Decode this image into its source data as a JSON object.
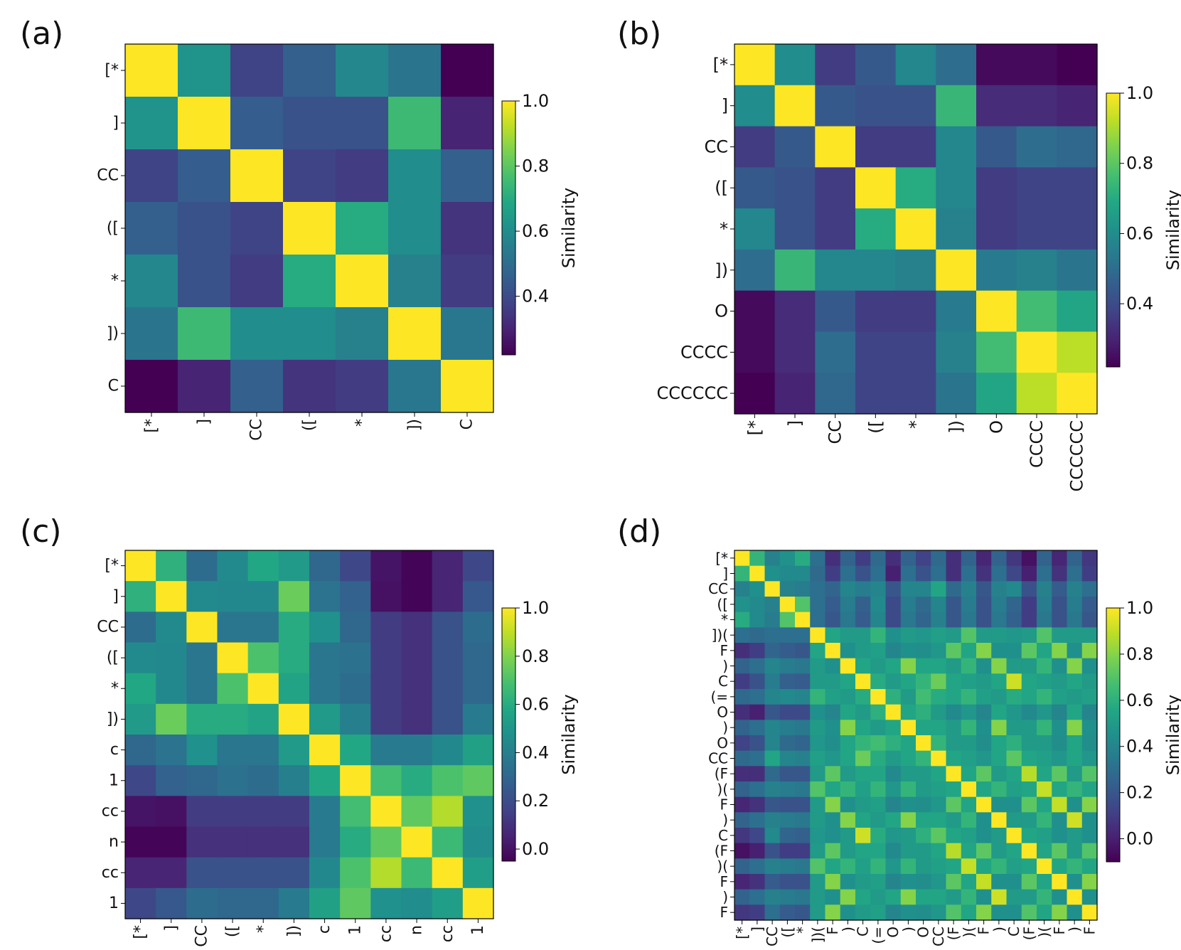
{
  "chart_data": [
    {
      "panel": "(a)",
      "type": "heatmap",
      "labels": [
        "[*",
        "]",
        "CC",
        "([",
        "*",
        "])",
        "C"
      ],
      "values": [
        [
          1.0,
          0.62,
          0.38,
          0.46,
          0.58,
          0.52,
          0.22
        ],
        [
          0.62,
          1.0,
          0.45,
          0.42,
          0.42,
          0.75,
          0.3
        ],
        [
          0.38,
          0.45,
          1.0,
          0.38,
          0.36,
          0.6,
          0.46
        ],
        [
          0.46,
          0.42,
          0.38,
          1.0,
          0.7,
          0.6,
          0.34
        ],
        [
          0.58,
          0.42,
          0.36,
          0.7,
          1.0,
          0.56,
          0.36
        ],
        [
          0.52,
          0.75,
          0.6,
          0.6,
          0.56,
          1.0,
          0.53
        ],
        [
          0.22,
          0.3,
          0.46,
          0.34,
          0.36,
          0.53,
          1.0
        ]
      ],
      "colorbar": {
        "label": "Similarity",
        "range": [
          0.22,
          1.0
        ],
        "ticks": [
          "0.4",
          "0.6",
          "0.8",
          "1.0"
        ],
        "tick_values": [
          0.4,
          0.6,
          0.8,
          1.0
        ]
      }
    },
    {
      "panel": "(b)",
      "type": "heatmap",
      "labels": [
        "[*",
        "]",
        "CC",
        "([",
        "*",
        "])",
        "O",
        "CCCC",
        "CCCCCC"
      ],
      "values": [
        [
          1.0,
          0.6,
          0.36,
          0.44,
          0.58,
          0.5,
          0.24,
          0.24,
          0.22
        ],
        [
          0.6,
          1.0,
          0.44,
          0.42,
          0.42,
          0.74,
          0.32,
          0.32,
          0.3
        ],
        [
          0.36,
          0.44,
          1.0,
          0.36,
          0.36,
          0.58,
          0.44,
          0.5,
          0.48
        ],
        [
          0.44,
          0.42,
          0.36,
          1.0,
          0.7,
          0.58,
          0.36,
          0.38,
          0.38
        ],
        [
          0.58,
          0.42,
          0.36,
          0.7,
          1.0,
          0.56,
          0.36,
          0.38,
          0.38
        ],
        [
          0.5,
          0.74,
          0.58,
          0.58,
          0.56,
          1.0,
          0.54,
          0.56,
          0.52
        ],
        [
          0.24,
          0.32,
          0.44,
          0.36,
          0.36,
          0.54,
          1.0,
          0.76,
          0.68
        ],
        [
          0.24,
          0.32,
          0.5,
          0.38,
          0.38,
          0.56,
          0.76,
          1.0,
          0.92
        ],
        [
          0.22,
          0.3,
          0.48,
          0.38,
          0.38,
          0.52,
          0.68,
          0.92,
          1.0
        ]
      ],
      "colorbar": {
        "label": "Similarity",
        "range": [
          0.22,
          1.0
        ],
        "ticks": [
          "0.4",
          "0.6",
          "0.8",
          "1.0"
        ],
        "tick_values": [
          0.4,
          0.6,
          0.8,
          1.0
        ]
      }
    },
    {
      "panel": "(c)",
      "type": "heatmap",
      "labels": [
        "[*",
        "]",
        "CC",
        "([",
        "*",
        "])",
        "c",
        "1",
        "cc",
        "n",
        "cc",
        "1"
      ],
      "values": [
        [
          1.0,
          0.62,
          0.32,
          0.45,
          0.58,
          0.52,
          0.3,
          0.18,
          0.01,
          -0.04,
          0.06,
          0.18
        ],
        [
          0.62,
          1.0,
          0.45,
          0.44,
          0.44,
          0.76,
          0.35,
          0.28,
          0.0,
          -0.04,
          0.06,
          0.24
        ],
        [
          0.32,
          0.45,
          1.0,
          0.36,
          0.36,
          0.6,
          0.48,
          0.3,
          0.14,
          0.1,
          0.22,
          0.32
        ],
        [
          0.45,
          0.44,
          0.36,
          1.0,
          0.7,
          0.6,
          0.36,
          0.34,
          0.14,
          0.1,
          0.22,
          0.3
        ],
        [
          0.58,
          0.44,
          0.36,
          0.7,
          1.0,
          0.56,
          0.36,
          0.32,
          0.14,
          0.1,
          0.22,
          0.3
        ],
        [
          0.52,
          0.76,
          0.6,
          0.6,
          0.56,
          1.0,
          0.52,
          0.4,
          0.14,
          0.1,
          0.22,
          0.38
        ],
        [
          0.3,
          0.35,
          0.48,
          0.36,
          0.36,
          0.52,
          1.0,
          0.58,
          0.38,
          0.38,
          0.44,
          0.55
        ],
        [
          0.18,
          0.28,
          0.3,
          0.34,
          0.32,
          0.4,
          0.58,
          1.0,
          0.68,
          0.6,
          0.7,
          0.74
        ],
        [
          0.01,
          0.0,
          0.14,
          0.14,
          0.14,
          0.14,
          0.38,
          0.68,
          1.0,
          0.74,
          0.88,
          0.48
        ],
        [
          -0.04,
          -0.04,
          0.1,
          0.1,
          0.1,
          0.1,
          0.38,
          0.6,
          0.74,
          1.0,
          0.66,
          0.46
        ],
        [
          0.06,
          0.06,
          0.22,
          0.22,
          0.22,
          0.22,
          0.44,
          0.7,
          0.88,
          0.66,
          1.0,
          0.54
        ],
        [
          0.18,
          0.24,
          0.32,
          0.3,
          0.3,
          0.38,
          0.55,
          0.74,
          0.48,
          0.46,
          0.54,
          1.0
        ]
      ],
      "colorbar": {
        "label": "Similarity",
        "range": [
          -0.05,
          1.0
        ],
        "ticks": [
          "0.0",
          "0.2",
          "0.4",
          "0.6",
          "0.8",
          "1.0"
        ],
        "tick_values": [
          0.0,
          0.2,
          0.4,
          0.6,
          0.8,
          1.0
        ]
      }
    },
    {
      "panel": "(d)",
      "type": "heatmap",
      "labels": [
        "[*",
        "]",
        "CC",
        "([",
        "*",
        "])(",
        "F",
        ")",
        "C",
        "(=",
        "O",
        ")",
        "O",
        "CC",
        "(F",
        ")(",
        "F",
        ")",
        "C",
        "(F",
        ")(",
        "F",
        ")",
        "F"
      ],
      "values": [
        [
          1.0,
          0.62,
          0.38,
          0.46,
          0.58,
          0.3,
          0.05,
          0.25,
          0.1,
          0.28,
          0.05,
          0.25,
          0.12,
          0.28,
          0.05,
          0.25,
          0.02,
          0.25,
          0.08,
          -0.05,
          0.25,
          0.02,
          0.25,
          0.08
        ],
        [
          0.62,
          1.0,
          0.45,
          0.42,
          0.42,
          0.28,
          0.1,
          0.3,
          0.18,
          0.3,
          0.0,
          0.3,
          0.18,
          0.3,
          0.05,
          0.3,
          0.06,
          0.3,
          0.14,
          0.0,
          0.3,
          0.06,
          0.3,
          0.1
        ],
        [
          0.38,
          0.45,
          1.0,
          0.38,
          0.36,
          0.3,
          0.26,
          0.4,
          0.36,
          0.4,
          0.2,
          0.4,
          0.4,
          0.55,
          0.28,
          0.38,
          0.2,
          0.38,
          0.42,
          0.18,
          0.38,
          0.22,
          0.38,
          0.3
        ],
        [
          0.46,
          0.42,
          0.38,
          1.0,
          0.7,
          0.3,
          0.22,
          0.36,
          0.24,
          0.42,
          0.15,
          0.36,
          0.28,
          0.4,
          0.2,
          0.36,
          0.18,
          0.36,
          0.26,
          0.1,
          0.36,
          0.18,
          0.36,
          0.22
        ],
        [
          0.58,
          0.42,
          0.36,
          0.7,
          1.0,
          0.3,
          0.2,
          0.34,
          0.22,
          0.4,
          0.15,
          0.34,
          0.26,
          0.38,
          0.2,
          0.34,
          0.18,
          0.34,
          0.24,
          0.1,
          0.34,
          0.18,
          0.34,
          0.2
        ],
        [
          0.3,
          0.28,
          0.3,
          0.3,
          0.3,
          1.0,
          0.55,
          0.5,
          0.5,
          0.62,
          0.45,
          0.5,
          0.48,
          0.52,
          0.5,
          0.7,
          0.5,
          0.5,
          0.48,
          0.5,
          0.7,
          0.5,
          0.5,
          0.5
        ],
        [
          0.05,
          0.1,
          0.26,
          0.22,
          0.2,
          0.55,
          1.0,
          0.45,
          0.5,
          0.52,
          0.4,
          0.45,
          0.44,
          0.48,
          0.72,
          0.55,
          0.8,
          0.45,
          0.45,
          0.72,
          0.55,
          0.8,
          0.45,
          0.8
        ],
        [
          0.25,
          0.3,
          0.4,
          0.36,
          0.34,
          0.5,
          0.45,
          1.0,
          0.55,
          0.5,
          0.55,
          0.8,
          0.55,
          0.55,
          0.5,
          0.62,
          0.45,
          0.8,
          0.5,
          0.5,
          0.62,
          0.45,
          0.8,
          0.45
        ],
        [
          0.1,
          0.18,
          0.36,
          0.24,
          0.22,
          0.5,
          0.5,
          0.55,
          1.0,
          0.58,
          0.5,
          0.55,
          0.62,
          0.75,
          0.55,
          0.52,
          0.5,
          0.55,
          0.92,
          0.55,
          0.52,
          0.5,
          0.55,
          0.5
        ],
        [
          0.28,
          0.3,
          0.4,
          0.42,
          0.4,
          0.62,
          0.52,
          0.5,
          0.58,
          1.0,
          0.6,
          0.5,
          0.66,
          0.58,
          0.55,
          0.62,
          0.52,
          0.5,
          0.58,
          0.55,
          0.62,
          0.52,
          0.5,
          0.52
        ],
        [
          0.05,
          0.0,
          0.2,
          0.15,
          0.15,
          0.45,
          0.4,
          0.55,
          0.5,
          0.6,
          1.0,
          0.55,
          0.6,
          0.5,
          0.42,
          0.48,
          0.4,
          0.55,
          0.48,
          0.42,
          0.48,
          0.4,
          0.55,
          0.4
        ],
        [
          0.25,
          0.3,
          0.4,
          0.36,
          0.34,
          0.5,
          0.45,
          0.8,
          0.55,
          0.5,
          0.55,
          1.0,
          0.55,
          0.55,
          0.5,
          0.62,
          0.45,
          0.8,
          0.5,
          0.5,
          0.62,
          0.45,
          0.8,
          0.45
        ],
        [
          0.12,
          0.18,
          0.4,
          0.28,
          0.26,
          0.48,
          0.44,
          0.55,
          0.62,
          0.66,
          0.6,
          0.55,
          1.0,
          0.62,
          0.5,
          0.5,
          0.44,
          0.55,
          0.6,
          0.5,
          0.5,
          0.44,
          0.55,
          0.44
        ],
        [
          0.28,
          0.3,
          0.55,
          0.4,
          0.38,
          0.52,
          0.48,
          0.55,
          0.75,
          0.58,
          0.5,
          0.55,
          0.62,
          1.0,
          0.55,
          0.52,
          0.48,
          0.55,
          0.72,
          0.55,
          0.52,
          0.48,
          0.55,
          0.48
        ],
        [
          0.05,
          0.05,
          0.28,
          0.2,
          0.2,
          0.5,
          0.72,
          0.5,
          0.55,
          0.55,
          0.42,
          0.5,
          0.5,
          0.55,
          1.0,
          0.55,
          0.72,
          0.5,
          0.55,
          0.88,
          0.55,
          0.72,
          0.5,
          0.7
        ],
        [
          0.25,
          0.3,
          0.38,
          0.36,
          0.34,
          0.7,
          0.55,
          0.62,
          0.52,
          0.62,
          0.48,
          0.62,
          0.5,
          0.52,
          0.55,
          1.0,
          0.55,
          0.62,
          0.52,
          0.55,
          0.9,
          0.55,
          0.62,
          0.55
        ],
        [
          0.02,
          0.06,
          0.2,
          0.18,
          0.18,
          0.5,
          0.8,
          0.45,
          0.5,
          0.52,
          0.4,
          0.45,
          0.44,
          0.48,
          0.72,
          0.55,
          1.0,
          0.45,
          0.45,
          0.72,
          0.55,
          0.9,
          0.45,
          0.8
        ],
        [
          0.25,
          0.3,
          0.38,
          0.36,
          0.34,
          0.5,
          0.45,
          0.8,
          0.55,
          0.5,
          0.55,
          0.8,
          0.55,
          0.55,
          0.5,
          0.62,
          0.45,
          1.0,
          0.5,
          0.5,
          0.62,
          0.45,
          0.92,
          0.45
        ],
        [
          0.08,
          0.14,
          0.42,
          0.26,
          0.24,
          0.48,
          0.45,
          0.5,
          0.92,
          0.58,
          0.48,
          0.5,
          0.6,
          0.72,
          0.55,
          0.52,
          0.45,
          0.5,
          1.0,
          0.55,
          0.52,
          0.45,
          0.5,
          0.45
        ],
        [
          -0.05,
          0.0,
          0.18,
          0.1,
          0.1,
          0.5,
          0.72,
          0.5,
          0.55,
          0.55,
          0.42,
          0.5,
          0.5,
          0.55,
          0.88,
          0.55,
          0.72,
          0.5,
          0.55,
          1.0,
          0.55,
          0.72,
          0.5,
          0.7
        ],
        [
          0.25,
          0.3,
          0.38,
          0.36,
          0.34,
          0.7,
          0.55,
          0.62,
          0.52,
          0.62,
          0.48,
          0.62,
          0.5,
          0.52,
          0.55,
          0.9,
          0.55,
          0.62,
          0.52,
          0.55,
          1.0,
          0.55,
          0.62,
          0.55
        ],
        [
          0.02,
          0.06,
          0.22,
          0.18,
          0.18,
          0.5,
          0.8,
          0.45,
          0.5,
          0.52,
          0.4,
          0.45,
          0.44,
          0.48,
          0.72,
          0.55,
          0.9,
          0.45,
          0.45,
          0.72,
          0.55,
          1.0,
          0.45,
          0.8
        ],
        [
          0.25,
          0.3,
          0.38,
          0.36,
          0.34,
          0.5,
          0.45,
          0.8,
          0.55,
          0.5,
          0.55,
          0.8,
          0.55,
          0.55,
          0.5,
          0.62,
          0.45,
          0.92,
          0.5,
          0.5,
          0.62,
          0.45,
          1.0,
          0.45
        ],
        [
          0.08,
          0.1,
          0.3,
          0.22,
          0.2,
          0.5,
          0.8,
          0.45,
          0.5,
          0.52,
          0.4,
          0.45,
          0.44,
          0.48,
          0.7,
          0.55,
          0.8,
          0.45,
          0.45,
          0.7,
          0.55,
          0.8,
          0.45,
          1.0
        ]
      ],
      "colorbar": {
        "label": "Similarity",
        "range": [
          -0.1,
          1.0
        ],
        "ticks": [
          "0.0",
          "0.2",
          "0.4",
          "0.6",
          "0.8",
          "1.0"
        ],
        "tick_values": [
          0.0,
          0.2,
          0.4,
          0.6,
          0.8,
          1.0
        ]
      }
    }
  ]
}
